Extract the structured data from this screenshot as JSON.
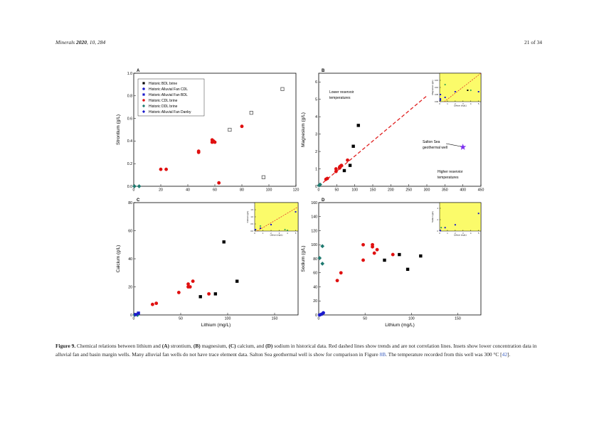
{
  "header": {
    "journal": "Minerals",
    "year": "2020",
    "volume": "10",
    "article": "284",
    "page": "21 of 34"
  },
  "caption": {
    "label": "Figure 9.",
    "text_1": " Chemical relations between lithium and ",
    "A": "(A)",
    "t_a": " strontium, ",
    "B": "(B)",
    "t_b": " magnesium, ",
    "C": "(C)",
    "t_c": " calcium, and ",
    "D": "(D)",
    "text_2": " sodium in historical data. Red dashed lines show trends and are not correlation lines. Insets show lower concentration data in alluvial fan and basin margin wells. Many alluvial fan wells do not have trace element data. Salton Sea geothermal well is show for comparison in Figure ",
    "fig_ref": "8B",
    "text_3": ". The temperature recorded from this well was 300 °C [",
    "cite": "42",
    "text_4": "]."
  },
  "legend": [
    {
      "name": "Historic BDL brine",
      "marker": "square",
      "color": "#000000"
    },
    {
      "name": "Historic Alluvial Fan CDL",
      "marker": "circle",
      "color": "#1a1acc"
    },
    {
      "name": "Historic Alluvial Fan BDL",
      "marker": "square",
      "color": "#1a1acc"
    },
    {
      "name": "Historic CDL brine",
      "marker": "circle",
      "color": "#e01010"
    },
    {
      "name": "Historic DDL brine",
      "marker": "diamond",
      "color": "#1f7a70"
    },
    {
      "name": "Historic Alluvial Fan Danby",
      "marker": "diamond",
      "color": "#1a1acc"
    }
  ],
  "chart_data": [
    {
      "panel": "A",
      "type": "scatter",
      "xlabel": "",
      "ylabel": "Strontium (g/L)",
      "xlim": [
        0,
        120
      ],
      "ylim": [
        0,
        1.0
      ],
      "xticks": [
        0,
        20,
        40,
        60,
        80,
        100,
        120
      ],
      "yticks": [
        "0.0",
        "0.2",
        "0.4",
        "0.6",
        "0.8",
        "1.0"
      ],
      "grid": false,
      "legend": "top-left",
      "series": [
        {
          "name": "Historic BDL brine",
          "marker": "open-square",
          "color": "#555555",
          "points": [
            [
              71,
              0.5
            ],
            [
              87,
              0.65
            ],
            [
              110,
              0.86
            ],
            [
              96,
              0.08
            ]
          ]
        },
        {
          "name": "Historic CDL brine",
          "marker": "circle",
          "color": "#e01010",
          "points": [
            [
              20,
              0.15
            ],
            [
              24,
              0.15
            ],
            [
              48,
              0.3
            ],
            [
              48,
              0.31
            ],
            [
              58,
              0.39
            ],
            [
              58,
              0.41
            ],
            [
              59,
              0.4
            ],
            [
              60,
              0.39
            ],
            [
              80,
              0.53
            ],
            [
              63,
              0.03
            ]
          ]
        },
        {
          "name": "Historic DDL brine",
          "marker": "diamond",
          "color": "#1f7a70",
          "points": [
            [
              0.5,
              0
            ],
            [
              4,
              0
            ]
          ]
        }
      ]
    },
    {
      "panel": "B",
      "type": "scatter",
      "xlabel": "",
      "ylabel": "Magnesium (g/L)",
      "xlim": [
        0,
        450
      ],
      "ylim": [
        0,
        6.5
      ],
      "xticks": [
        0,
        50,
        100,
        150,
        200,
        250,
        300,
        350,
        400,
        450
      ],
      "yticks": [
        "0",
        "1",
        "2",
        "3",
        "4",
        "5",
        "6"
      ],
      "grid": false,
      "trend": [
        [
          0,
          0
        ],
        [
          300,
          5.2
        ]
      ],
      "annotations": [
        "Lower reservoir temperatures",
        "Salton Sea geothermal well",
        "Higher reservior temperatures"
      ],
      "series": [
        {
          "name": "Historic BDL brine",
          "marker": "square",
          "color": "#000000",
          "points": [
            [
              71,
              0.9
            ],
            [
              87,
              1.2
            ],
            [
              96,
              2.3
            ],
            [
              110,
              3.5
            ]
          ]
        },
        {
          "name": "Historic CDL brine",
          "marker": "circle",
          "color": "#e01010",
          "points": [
            [
              20,
              0.4
            ],
            [
              24,
              0.45
            ],
            [
              48,
              0.85
            ],
            [
              48,
              1.0
            ],
            [
              58,
              1.05
            ],
            [
              58,
              1.1
            ],
            [
              60,
              1.15
            ],
            [
              63,
              1.2
            ],
            [
              80,
              1.5
            ]
          ]
        },
        {
          "name": "Historic DDL brine",
          "marker": "diamond",
          "color": "#1f7a70",
          "points": [
            [
              1,
              0.05
            ],
            [
              4,
              0.1
            ]
          ]
        },
        {
          "name": "Salton Sea geothermal well",
          "marker": "star",
          "color": "#7b2ff0",
          "points": [
            [
              400,
              2.25
            ]
          ]
        }
      ],
      "inset": {
        "xlabel": "Lithium (mg/L)",
        "ylabel": "Magnesium (g/L)",
        "xlim": [
          0,
          5.3
        ],
        "ylim": [
          0,
          0.2
        ],
        "xticks": [
          0,
          1,
          2,
          3,
          4,
          5
        ],
        "yticks": [
          "0.00",
          "0.05",
          "0.10",
          "0.15"
        ],
        "trend": [
          [
            0.6,
            0
          ],
          [
            5.3,
            0.2
          ]
        ],
        "series": [
          {
            "marker": "square",
            "color": "#1a1acc",
            "points": [
              [
                0.1,
                0.05
              ],
              [
                0.1,
                0.02
              ],
              [
                0.1,
                0.01
              ],
              [
                0.7,
                0.03
              ],
              [
                2,
                0.07
              ],
              [
                5,
                0.07
              ]
            ]
          },
          {
            "marker": "diamond",
            "color": "#1f9a50",
            "points": [
              [
                0.7,
                0.12
              ],
              [
                4,
                0.08
              ]
            ]
          },
          {
            "marker": "square",
            "color": "#000000",
            "points": [
              [
                3.6,
                0.08
              ]
            ]
          }
        ]
      }
    },
    {
      "panel": "C",
      "type": "scatter",
      "xlabel": "Lithium (mg/L)",
      "ylabel": "Calcium (g/L)",
      "xlim": [
        0,
        175
      ],
      "ylim": [
        0,
        80
      ],
      "xticks": [
        0,
        50,
        100,
        150
      ],
      "yticks": [
        "0",
        "20",
        "40",
        "60",
        "80"
      ],
      "grid": false,
      "series": [
        {
          "name": "Historic BDL brine",
          "marker": "square",
          "color": "#000000",
          "points": [
            [
              71,
              13
            ],
            [
              87,
              15
            ],
            [
              96,
              52
            ],
            [
              110,
              24
            ]
          ]
        },
        {
          "name": "Historic CDL brine",
          "marker": "circle",
          "color": "#e01010",
          "points": [
            [
              20,
              7.5
            ],
            [
              24,
              8.3
            ],
            [
              48,
              16
            ],
            [
              58,
              22
            ],
            [
              58,
              20
            ],
            [
              60,
              20
            ],
            [
              63,
              24
            ],
            [
              80,
              15
            ]
          ]
        },
        {
          "name": "Historic DDL brine",
          "marker": "diamond",
          "color": "#1f7a70",
          "points": [
            [
              1,
              0
            ],
            [
              4,
              0
            ]
          ]
        },
        {
          "name": "Historic Alluvial Fan BDL",
          "marker": "square",
          "color": "#1a1acc",
          "points": [
            [
              5,
              1.3
            ],
            [
              2,
              0.3
            ]
          ]
        }
      ],
      "inset": {
        "xlabel": "Lithium (mg/L)",
        "ylabel": "Calcium (g/L)",
        "xlim": [
          0,
          5.3
        ],
        "ylim": [
          0,
          2
        ],
        "xticks": [
          0,
          1,
          2,
          3,
          4,
          5
        ],
        "yticks": [
          "0.0",
          "0.5",
          "1.0",
          "1.5"
        ],
        "trend": [
          [
            0.3,
            0
          ],
          [
            5.3,
            1.7
          ]
        ],
        "series": [
          {
            "marker": "square",
            "color": "#1a1acc",
            "points": [
              [
                0.1,
                0.1
              ],
              [
                0.7,
                0.2
              ],
              [
                2,
                0.45
              ],
              [
                5,
                1.35
              ]
            ]
          },
          {
            "marker": "diamond",
            "color": "#1f9a50",
            "points": [
              [
                0.7,
                0.35
              ],
              [
                3.7,
                0.1
              ],
              [
                4,
                0.05
              ]
            ]
          }
        ]
      }
    },
    {
      "panel": "D",
      "type": "scatter",
      "xlabel": "Lithium (mg/L)",
      "ylabel": "Sodium (g/L)",
      "xlim": [
        0,
        175
      ],
      "ylim": [
        0,
        160
      ],
      "xticks": [
        0,
        50,
        100,
        150
      ],
      "yticks": [
        "0",
        "20",
        "40",
        "60",
        "80",
        "100",
        "120",
        "140",
        "160"
      ],
      "grid": false,
      "series": [
        {
          "name": "Historic BDL brine",
          "marker": "square",
          "color": "#000000",
          "points": [
            [
              71,
              78
            ],
            [
              87,
              86
            ],
            [
              96,
              65
            ],
            [
              110,
              84
            ]
          ]
        },
        {
          "name": "Historic CDL brine",
          "marker": "circle",
          "color": "#e01010",
          "points": [
            [
              20,
              49
            ],
            [
              24,
              60
            ],
            [
              48,
              100
            ],
            [
              48,
              78
            ],
            [
              58,
              100
            ],
            [
              58,
              97
            ],
            [
              60,
              88
            ],
            [
              63,
              93
            ],
            [
              80,
              86
            ]
          ]
        },
        {
          "name": "Historic DDL brine",
          "marker": "diamond",
          "color": "#1f7a70",
          "points": [
            [
              1,
              81
            ],
            [
              4,
              98
            ],
            [
              4,
              73
            ]
          ]
        },
        {
          "name": "Historic Alluvial Fan CDL",
          "marker": "circle",
          "color": "#1a1acc",
          "points": [
            [
              1,
              0
            ],
            [
              3,
              1
            ],
            [
              5,
              3
            ]
          ]
        }
      ],
      "inset": {
        "xlabel": "Lithium (mg/L)",
        "ylabel": "Sodium (g/L)",
        "xlim": [
          0,
          5.3
        ],
        "ylim": [
          0,
          5
        ],
        "xticks": [
          0,
          1,
          2,
          3,
          4,
          5
        ],
        "yticks": [
          "0",
          "2",
          "4"
        ],
        "series": [
          {
            "marker": "square",
            "color": "#1a1acc",
            "points": [
              [
                0.1,
                0.1
              ],
              [
                0.7,
                0.6
              ],
              [
                2,
                1.1
              ],
              [
                5,
                3.1
              ]
            ]
          },
          {
            "marker": "diamond",
            "color": "#1f9a50",
            "points": [
              [
                0.2,
                0.6
              ]
            ]
          }
        ]
      }
    }
  ]
}
